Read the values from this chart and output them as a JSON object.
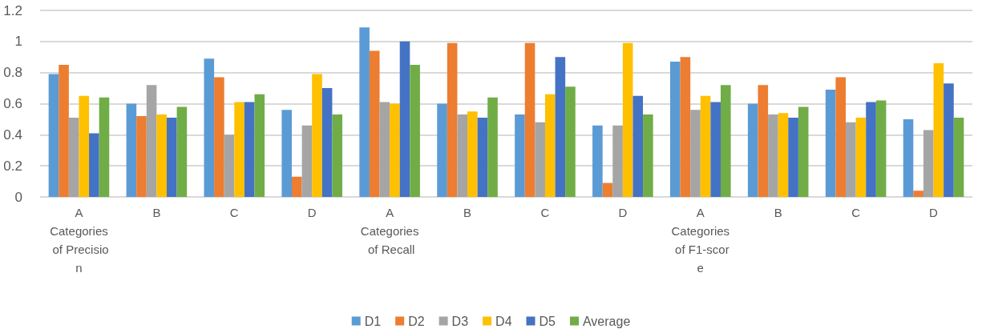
{
  "chart_data": {
    "type": "bar",
    "categories": [
      "A\nCategories of Precision",
      "B",
      "C",
      "D",
      "A\nCategories of Recall",
      "B",
      "C",
      "D",
      "A\nCategories of F1-score",
      "B",
      "C",
      "D"
    ],
    "series": [
      {
        "name": "D1",
        "color": "#5b9bd5",
        "values": [
          0.79,
          0.6,
          0.89,
          0.56,
          1.09,
          0.6,
          0.53,
          0.46,
          0.87,
          0.6,
          0.69,
          0.5
        ]
      },
      {
        "name": "D2",
        "color": "#ed7d31",
        "values": [
          0.85,
          0.52,
          0.77,
          0.13,
          0.94,
          0.99,
          0.99,
          0.09,
          0.9,
          0.72,
          0.77,
          0.04
        ]
      },
      {
        "name": "D3",
        "color": "#a5a5a5",
        "values": [
          0.51,
          0.72,
          0.4,
          0.46,
          0.61,
          0.53,
          0.48,
          0.46,
          0.56,
          0.53,
          0.48,
          0.43
        ]
      },
      {
        "name": "D4",
        "color": "#ffc000",
        "values": [
          0.65,
          0.53,
          0.61,
          0.79,
          0.6,
          0.55,
          0.66,
          0.99,
          0.65,
          0.54,
          0.51,
          0.86
        ]
      },
      {
        "name": "D5",
        "color": "#4472c4",
        "values": [
          0.41,
          0.51,
          0.61,
          0.7,
          1.0,
          0.51,
          0.9,
          0.65,
          0.61,
          0.51,
          0.61,
          0.73
        ]
      },
      {
        "name": "Average",
        "color": "#70ad47",
        "values": [
          0.64,
          0.58,
          0.66,
          0.53,
          0.85,
          0.64,
          0.71,
          0.53,
          0.72,
          0.58,
          0.62,
          0.51
        ]
      }
    ],
    "ylim": [
      0,
      1.2
    ],
    "yticks": [
      0,
      0.2,
      0.4,
      0.6,
      0.8,
      1,
      1.2
    ],
    "grid": "y",
    "legend": "bottom"
  }
}
